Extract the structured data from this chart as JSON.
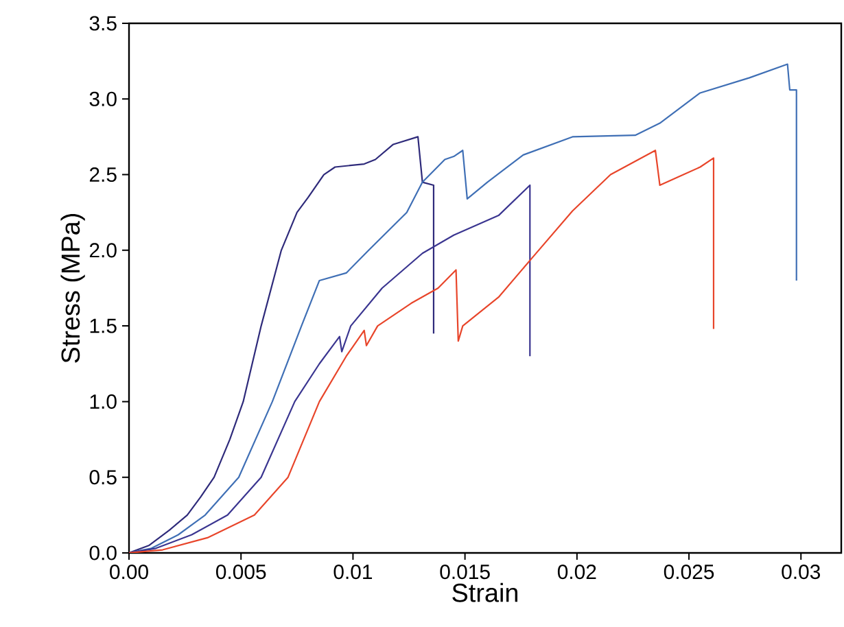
{
  "chart_data": {
    "type": "line",
    "xlabel": "Strain",
    "ylabel": "Stress (MPa)",
    "xlim": [
      0,
      0.0318
    ],
    "ylim": [
      0,
      3.5
    ],
    "xticks": [
      {
        "value": 0,
        "label": "0.00"
      },
      0.005,
      0.01,
      0.015,
      0.02,
      0.025,
      0.03
    ],
    "yticks": [
      {
        "value": 0,
        "label": "0.0"
      },
      0.5,
      {
        "value": 1,
        "label": "1.0"
      },
      1.5,
      {
        "value": 2,
        "label": "2.0"
      },
      2.5,
      {
        "value": 3,
        "label": "3.0"
      },
      3.5
    ],
    "grid": false,
    "series": [
      {
        "color": "#2e2a7a",
        "x": [
          0,
          0.0009,
          0.0018,
          0.0026,
          0.0032,
          0.0038,
          0.0045,
          0.0051,
          0.0059,
          0.0068,
          0.0075,
          0.008,
          0.0087,
          0.0092,
          0.0105,
          0.011,
          0.0118,
          0.0129,
          0.0131,
          0.0136,
          0.0136
        ],
        "values": [
          0,
          0.05,
          0.15,
          0.25,
          0.37,
          0.5,
          0.75,
          1.0,
          1.5,
          2.0,
          2.25,
          2.35,
          2.5,
          2.55,
          2.57,
          2.6,
          2.7,
          2.75,
          2.45,
          2.43,
          1.45
        ]
      },
      {
        "color": "#3f6fb5",
        "x": [
          0,
          0.001,
          0.0022,
          0.0034,
          0.0049,
          0.0064,
          0.0077,
          0.0085,
          0.0097,
          0.0107,
          0.0124,
          0.0131,
          0.0141,
          0.0145,
          0.0149,
          0.0151,
          0.016,
          0.0176,
          0.0198,
          0.0226,
          0.0237,
          0.0255,
          0.0277,
          0.0294,
          0.0295,
          0.0298,
          0.0298
        ],
        "values": [
          0,
          0.03,
          0.12,
          0.25,
          0.5,
          1.0,
          1.5,
          1.8,
          1.85,
          2.0,
          2.25,
          2.45,
          2.6,
          2.62,
          2.66,
          2.34,
          2.45,
          2.63,
          2.75,
          2.76,
          2.84,
          3.04,
          3.14,
          3.23,
          3.06,
          3.06,
          1.8
        ]
      },
      {
        "color": "#3a3590",
        "x": [
          0,
          0.0012,
          0.0028,
          0.0044,
          0.0059,
          0.0074,
          0.0085,
          0.0094,
          0.0095,
          0.0099,
          0.0113,
          0.0131,
          0.0145,
          0.0165,
          0.0179,
          0.0179
        ],
        "values": [
          0,
          0.03,
          0.12,
          0.25,
          0.5,
          1.0,
          1.25,
          1.43,
          1.33,
          1.5,
          1.75,
          1.98,
          2.1,
          2.23,
          2.43,
          1.3
        ]
      },
      {
        "color": "#e8452a",
        "x": [
          0,
          0.0015,
          0.0035,
          0.0056,
          0.0071,
          0.0085,
          0.0097,
          0.0105,
          0.0106,
          0.0111,
          0.0126,
          0.0138,
          0.0146,
          0.0147,
          0.0149,
          0.0165,
          0.018,
          0.0198,
          0.0215,
          0.0235,
          0.0237,
          0.0255,
          0.0261,
          0.0261
        ],
        "values": [
          0,
          0.02,
          0.1,
          0.25,
          0.5,
          1.0,
          1.3,
          1.47,
          1.37,
          1.5,
          1.65,
          1.75,
          1.87,
          1.4,
          1.5,
          1.69,
          1.95,
          2.26,
          2.5,
          2.66,
          2.43,
          2.55,
          2.61,
          1.48
        ]
      }
    ]
  }
}
